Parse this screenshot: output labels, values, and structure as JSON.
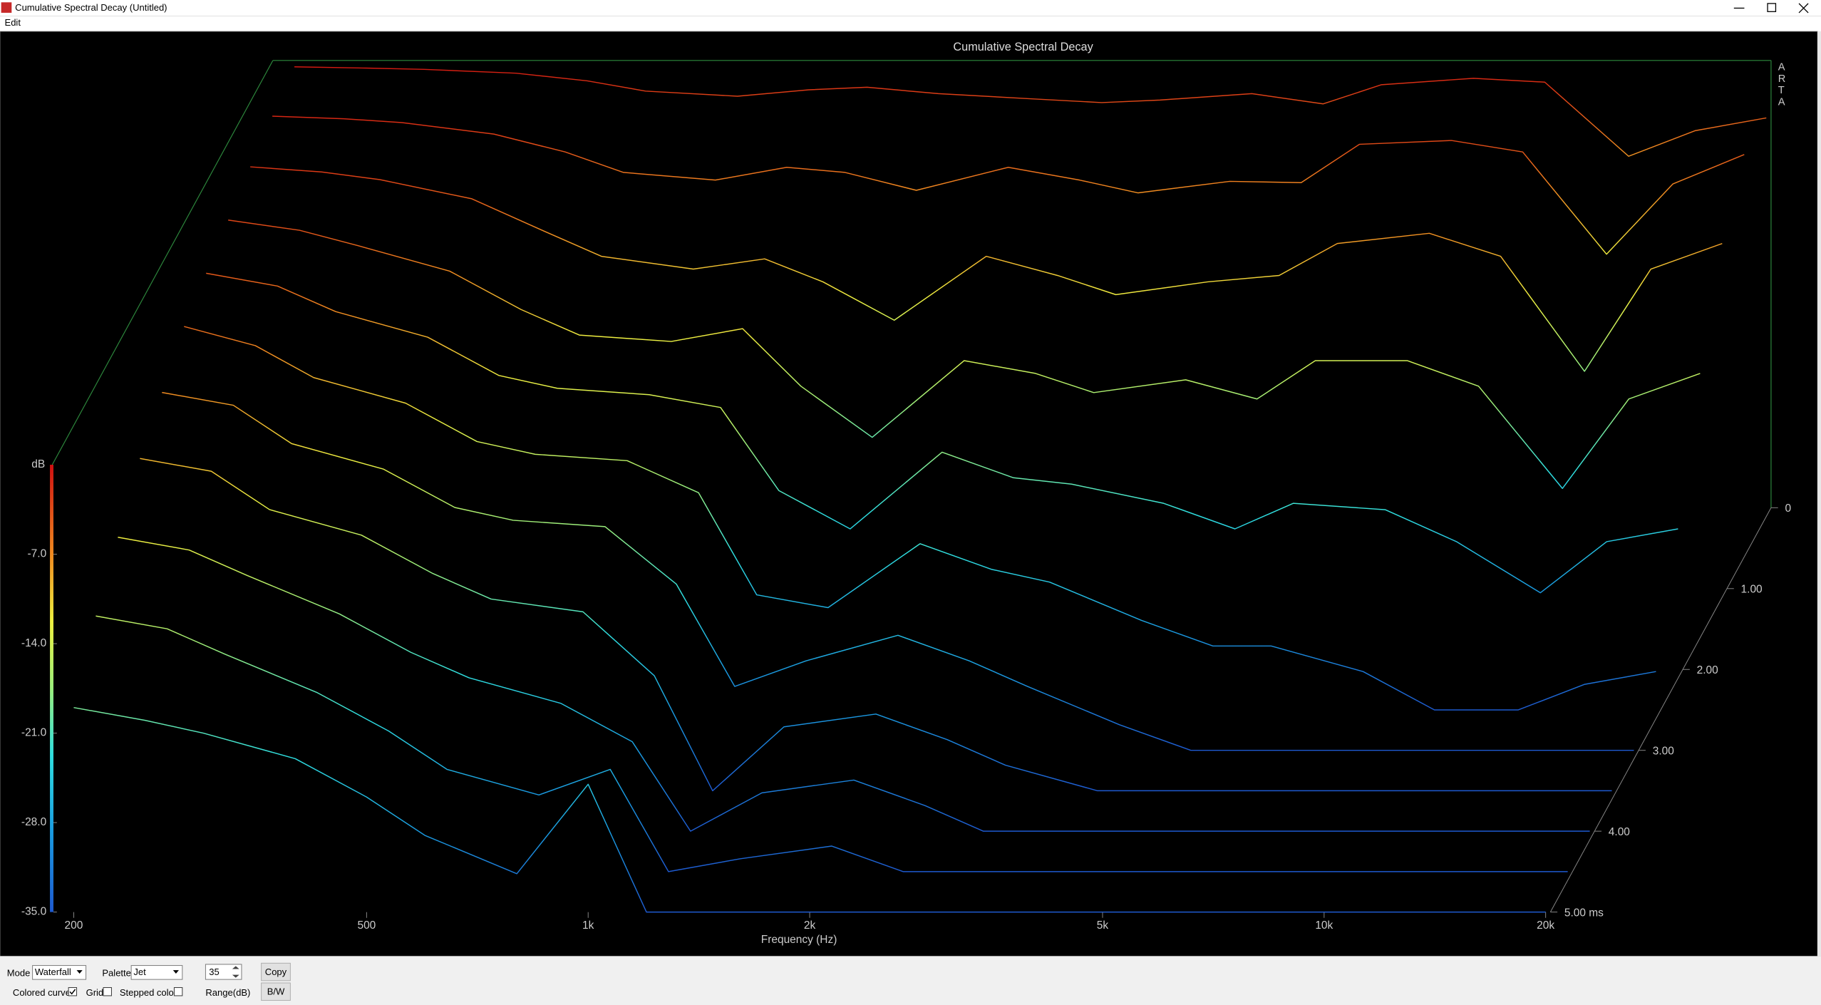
{
  "window": {
    "title": "Cumulative Spectral Decay  (Untitled)"
  },
  "menu": [
    "Edit"
  ],
  "chart_data": {
    "type": "waterfall",
    "title": "Cumulative Spectral Decay",
    "watermark": "ARTA",
    "x_label": "Frequency (Hz)",
    "y_label": "dB",
    "x": [
      200,
      250,
      300,
      400,
      500,
      600,
      800,
      1000,
      1200,
      1500,
      2000,
      2500,
      3000,
      4000,
      5000,
      6000,
      8000,
      10000,
      13000,
      16000,
      20000
    ],
    "xlim": [
      187,
      20300
    ],
    "xticks": [
      200,
      500,
      {
        "value": 1000,
        "label": "1k"
      },
      {
        "value": 2000,
        "label": "2k"
      },
      {
        "value": 5000,
        "label": "5k"
      },
      {
        "value": 10000,
        "label": "10k"
      },
      {
        "value": 20000,
        "label": "20k"
      }
    ],
    "log_x": true,
    "ylim": [
      -35,
      0
    ],
    "yticks": [
      {
        "value": -7,
        "label": "-7.0"
      },
      {
        "value": -14,
        "label": "-14.0"
      },
      {
        "value": -21,
        "label": "-21.0"
      },
      {
        "value": -28,
        "label": "-28.0"
      },
      {
        "value": -35,
        "label": "-35.0"
      }
    ],
    "z": [
      0,
      0.5,
      1,
      1.5,
      2,
      2.5,
      3,
      3.5,
      4,
      4.5,
      5
    ],
    "zlim": [
      0,
      5
    ],
    "zticks": [
      0,
      {
        "value": 1,
        "label": "1.00"
      },
      {
        "value": 2,
        "label": "2.00"
      },
      {
        "value": 3,
        "label": "3.00"
      },
      {
        "value": 4,
        "label": "4.00"
      },
      {
        "value": 5,
        "label": "5.00 ms"
      }
    ],
    "series": [
      {
        "values": [
          -0.5,
          -0.6,
          -0.7,
          -1.0,
          -1.6,
          -2.4,
          -2.8,
          -2.3,
          -2.1,
          -2.6,
          -3.0,
          -3.3,
          -3.1,
          -2.6,
          -3.4,
          -1.9,
          -1.4,
          -1.7,
          -7.5,
          -5.5,
          -4.5
        ]
      },
      {
        "values": [
          -1.2,
          -1.4,
          -1.7,
          -2.6,
          -4.0,
          -5.6,
          -6.2,
          -5.2,
          -5.6,
          -7.0,
          -5.2,
          -6.2,
          -7.2,
          -6.3,
          -6.4,
          -3.4,
          -3.1,
          -4.0,
          -12.0,
          -6.5,
          -4.2
        ]
      },
      {
        "values": [
          -2.0,
          -2.4,
          -3.0,
          -4.5,
          -7.0,
          -9.0,
          -10.0,
          -9.2,
          -11.0,
          -14.0,
          -9.0,
          -10.5,
          -12.0,
          -11.0,
          -10.5,
          -8.0,
          -7.2,
          -9.0,
          -18.0,
          -10.0,
          -8.0
        ]
      },
      {
        "values": [
          -3.0,
          -3.8,
          -5.0,
          -7.0,
          -10.0,
          -12.0,
          -12.5,
          -11.5,
          -16.0,
          -20.0,
          -14.0,
          -15.0,
          -16.5,
          -15.5,
          -17.0,
          -14.0,
          -14.0,
          -16.0,
          -24.0,
          -17.0,
          -15.0
        ]
      },
      {
        "values": [
          -4.0,
          -5.0,
          -7.0,
          -9.0,
          -12.0,
          -13.0,
          -13.5,
          -14.5,
          -21.0,
          -24.0,
          -18.0,
          -20.0,
          -20.5,
          -22.0,
          -24.0,
          -22.0,
          -22.5,
          -25.0,
          -29.0,
          -25.0,
          -24.0
        ]
      },
      {
        "values": [
          -5.0,
          -6.5,
          -9.0,
          -11.0,
          -14.0,
          -15.0,
          -15.5,
          -18.0,
          -26.0,
          -27.0,
          -22.0,
          -24.0,
          -25.0,
          -28.0,
          -30.0,
          -30.0,
          -32.0,
          -35,
          -35,
          -33.0,
          -32.0
        ]
      },
      {
        "values": [
          -7.0,
          -8.0,
          -11.0,
          -13.0,
          -16.0,
          -17.0,
          -17.5,
          -22.0,
          -30.0,
          -28.0,
          -26.0,
          -28.0,
          -30.0,
          -33.0,
          -35,
          -35,
          -35,
          -35,
          -35,
          -35,
          -35
        ]
      },
      {
        "values": [
          -9.0,
          -10.0,
          -13.0,
          -15.0,
          -18.0,
          -20.0,
          -21.0,
          -26.0,
          -35,
          -30.0,
          -29.0,
          -31.0,
          -33.0,
          -35,
          -35,
          -35,
          -35,
          -35,
          -35,
          -35,
          -35
        ]
      },
      {
        "values": [
          -12.0,
          -13.0,
          -15.0,
          -18.0,
          -21.0,
          -23.0,
          -25.0,
          -28.0,
          -35,
          -32.0,
          -31.0,
          -33.0,
          -35,
          -35,
          -35,
          -35,
          -35,
          -35,
          -35,
          -35,
          -35
        ]
      },
      {
        "values": [
          -15.0,
          -16.0,
          -18.0,
          -21.0,
          -24.0,
          -27.0,
          -29.0,
          -27.0,
          -35,
          -34.0,
          -33.0,
          -35,
          -35,
          -35,
          -35,
          -35,
          -35,
          -35,
          -35,
          -35,
          -35
        ]
      },
      {
        "values": [
          -19.0,
          -20.0,
          -21.0,
          -23.0,
          -26.0,
          -29.0,
          -32.0,
          -25.0,
          -35,
          -35,
          -35,
          -35,
          -35,
          -35,
          -35,
          -35,
          -35,
          -35,
          -35,
          -35,
          -35
        ]
      }
    ]
  },
  "controls": {
    "mode_label": "Mode",
    "mode": "Waterfall",
    "palette_label": "Palette",
    "palette": "Jet",
    "range": 35,
    "range_label": "Range(dB)",
    "copy": "Copy",
    "bw": "B/W",
    "colored_curves": {
      "label": "Colored curves",
      "checked": true
    },
    "grid": {
      "label": "Grid",
      "checked": false
    },
    "stepped_colors": {
      "label": "Stepped colors",
      "checked": false
    }
  }
}
